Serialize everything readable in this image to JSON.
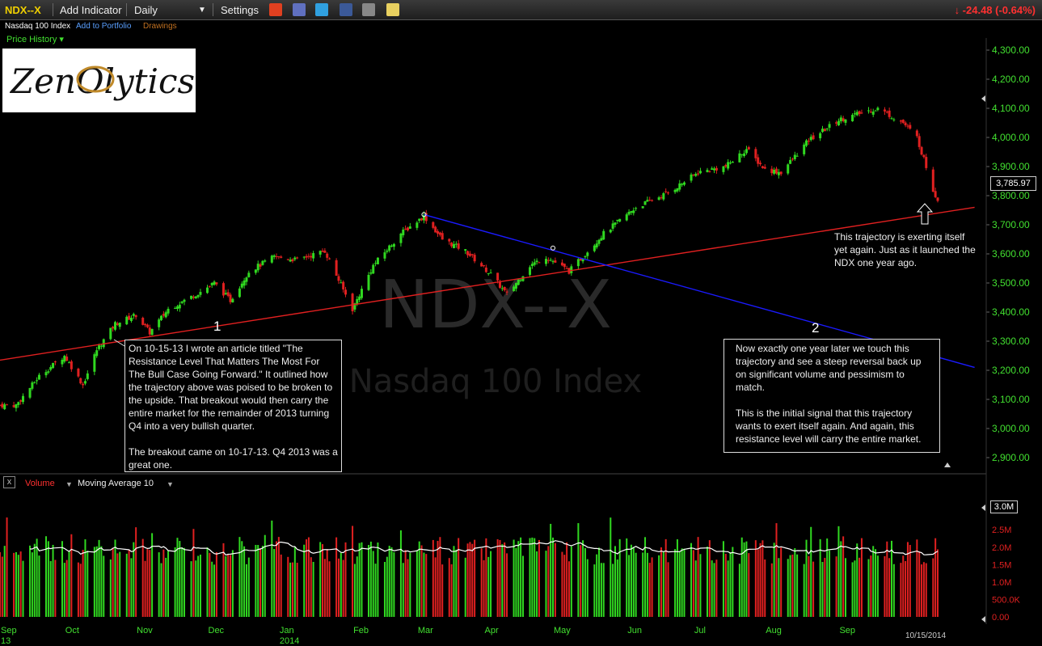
{
  "toolbar": {
    "ticker": "NDX--X",
    "add_indicator": "Add Indicator",
    "period": "Daily",
    "settings": "Settings",
    "change": "↓ -24.48 (-0.64%)"
  },
  "subheader": {
    "name": "Nasdaq 100 Index",
    "add_to_portfolio": "Add to Portfolio",
    "drawings": "Drawings"
  },
  "panel_label": "Price History ▾",
  "logo_text": "ZenOlytics",
  "watermark": {
    "symbol": "NDX--X",
    "name": "Nasdaq 100 Index"
  },
  "annotations": {
    "marker1": "1",
    "marker2": "2",
    "note1": "On 10-15-13 I wrote an article titled \"The Resistance Level That Matters The Most For The Bull Case Going Forward.\" It outlined how the trajectory above was poised to be broken to the upside. That breakout would then carry the entire market for the remainder of 2013 turning Q4 into a very bullish quarter.\n\nThe breakout came on 10-17-13. Q4 2013 was a great one.",
    "note2": "Now exactly one year later we touch this trajectory and see a steep reversal back up on significant volume and pessimism to match.\n\nThis is the initial signal that this trajectory wants to exert itself again. And again, this resistance level will carry the entire market.",
    "note3": "This trajectory is exerting itself yet again. Just as it launched the NDX one year ago."
  },
  "volume_panel": {
    "close": "x",
    "volume_label": "Volume",
    "ma_label": "Moving Average 10",
    "last_volume": "3.0M",
    "y_ticks": [
      "2.5M",
      "2.0M",
      "1.5M",
      "1.0M",
      "500.0K",
      "0.00"
    ]
  },
  "last_price": "3,785.97",
  "last_date": "10/15/2014",
  "colors": {
    "up": "#30d820",
    "down": "#e02020",
    "trendline_red": "#e02020",
    "trendline_blue": "#1a1aff",
    "axis_text": "#42e030"
  },
  "chart_data": {
    "type": "candlestick",
    "symbol": "NDX--X",
    "x_ticks": [
      "Sep\n13",
      "Oct",
      "Nov",
      "Dec",
      "Jan\n2014",
      "Feb",
      "Mar",
      "Apr",
      "May",
      "Jun",
      "Jul",
      "Aug",
      "Sep"
    ],
    "y_ticks": [
      "4,300.00",
      "4,200.00",
      "4,100.00",
      "4,000.00",
      "3,900.00",
      "3,800.00",
      "3,700.00",
      "3,600.00",
      "3,500.00",
      "3,400.00",
      "3,300.00",
      "3,200.00",
      "3,100.00",
      "3,000.00",
      "2,900.00"
    ],
    "ylim": [
      2870,
      4330
    ],
    "close_series": {
      "dates": [
        "2013-09-10",
        "2013-09-20",
        "2013-10-01",
        "2013-10-09",
        "2013-10-15",
        "2013-10-23",
        "2013-11-01",
        "2013-11-07",
        "2013-11-15",
        "2013-11-29",
        "2013-12-05",
        "2013-12-12",
        "2013-12-20",
        "2013-12-31",
        "2014-01-10",
        "2014-01-22",
        "2014-02-03",
        "2014-02-12",
        "2014-02-24",
        "2014-03-06",
        "2014-03-14",
        "2014-03-24",
        "2014-04-04",
        "2014-04-11",
        "2014-04-21",
        "2014-04-28",
        "2014-05-08",
        "2014-05-15",
        "2014-05-23",
        "2014-06-06",
        "2014-06-20",
        "2014-07-03",
        "2014-07-15",
        "2014-07-24",
        "2014-08-01",
        "2014-08-08",
        "2014-08-20",
        "2014-09-02",
        "2014-09-10",
        "2014-09-19",
        "2014-09-30",
        "2014-10-06",
        "2014-10-10",
        "2014-10-13",
        "2014-10-15"
      ],
      "close": [
        3080,
        3180,
        3250,
        3150,
        3270,
        3360,
        3390,
        3330,
        3410,
        3470,
        3500,
        3440,
        3540,
        3590,
        3580,
        3610,
        3410,
        3560,
        3670,
        3730,
        3650,
        3610,
        3530,
        3460,
        3560,
        3590,
        3540,
        3600,
        3670,
        3760,
        3810,
        3880,
        3900,
        3960,
        3890,
        3880,
        3990,
        4060,
        4080,
        4100,
        4050,
        4000,
        3900,
        3820,
        3786
      ]
    },
    "volume": {
      "unit": "shares",
      "ylim": [
        0,
        3200000
      ],
      "ma_period": 10
    },
    "trendlines": [
      {
        "color": "red",
        "from": {
          "date": "2013-09-03",
          "price": 3235
        },
        "to": {
          "date": "2014-10-31",
          "price": 3760
        }
      },
      {
        "color": "blue",
        "from": {
          "date": "2014-03-06",
          "price": 3735
        },
        "to": {
          "date": "2014-10-31",
          "price": 3210
        }
      }
    ]
  }
}
